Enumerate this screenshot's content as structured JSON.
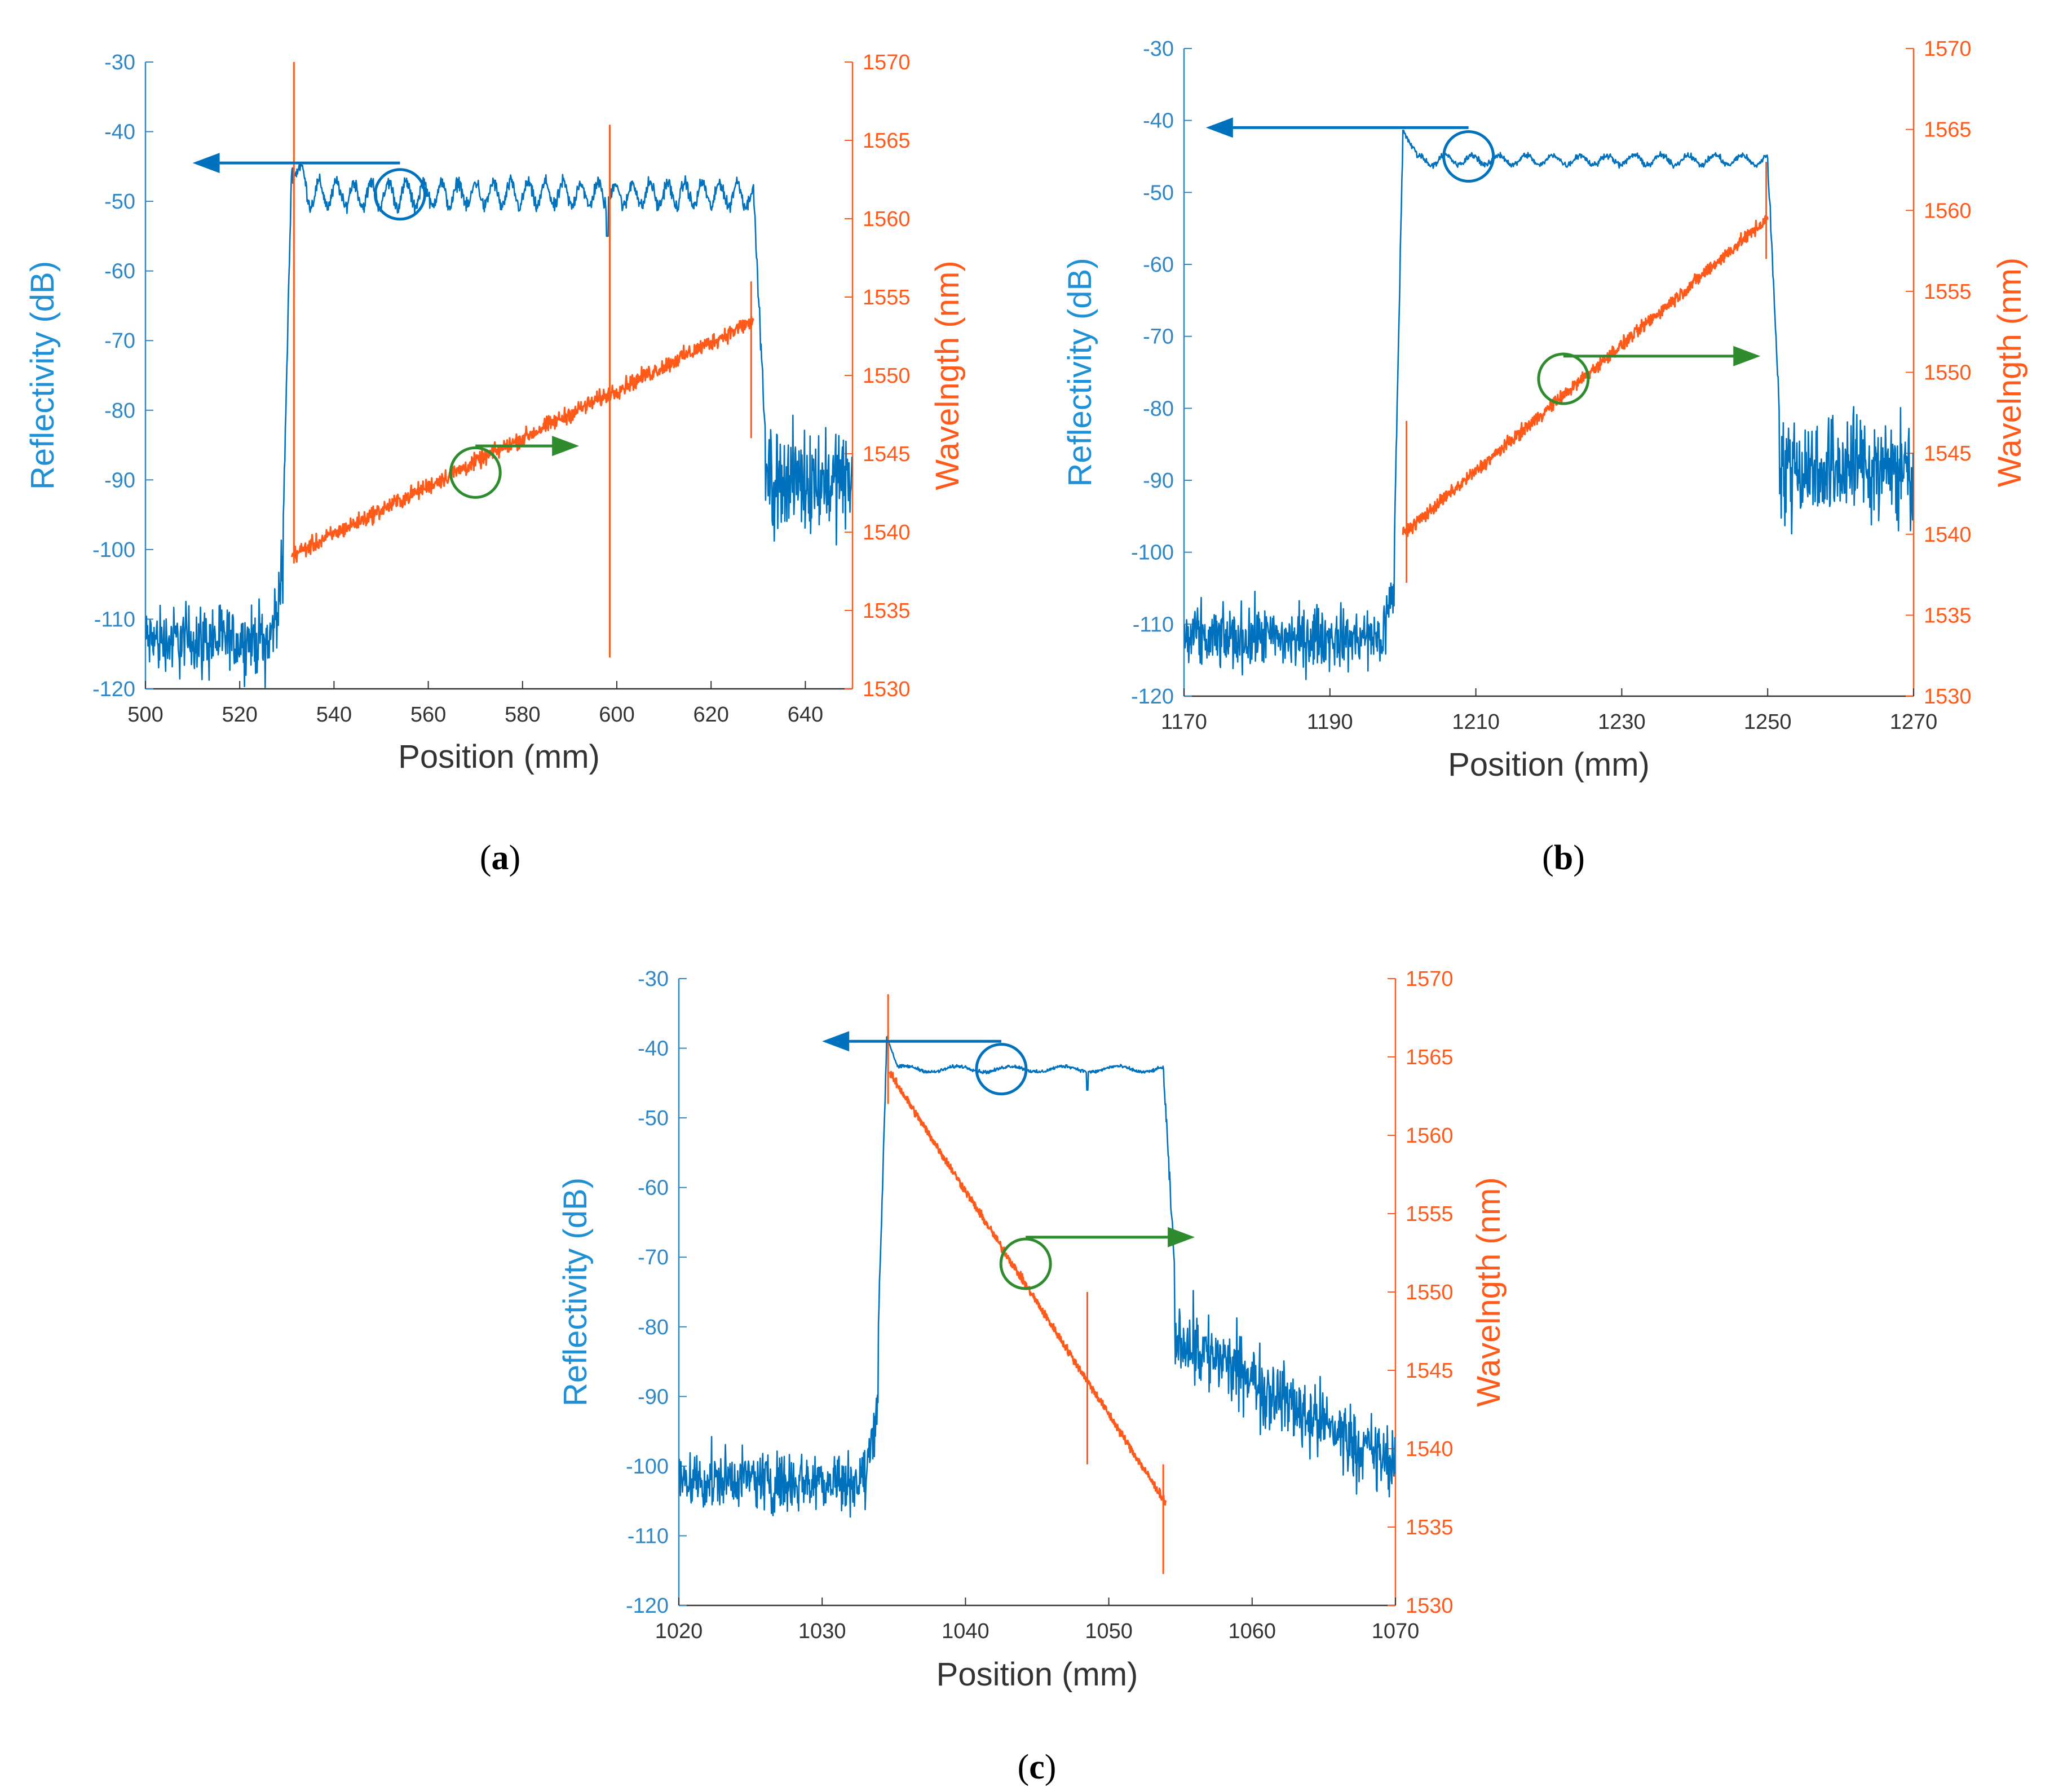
{
  "colors": {
    "reflectivity": "#0072bd",
    "reflectivity_text": "#2e87c6",
    "wavelength": "#ff5a1a",
    "indicator": "#2e8b2e",
    "axis_x": "#333333"
  },
  "chart_data": [
    {
      "panel": "a",
      "type": "line",
      "caption_open": "(",
      "caption_letter": "a",
      "caption_close": ")",
      "xlabel": "Position (mm)",
      "ylabel_left": "Reflectivity (dB)",
      "ylabel_right": "Wavelngth (nm)",
      "xlim": [
        500,
        650
      ],
      "ylim_left": [
        -120,
        -30
      ],
      "ylim_right": [
        1530,
        1570
      ],
      "xticks": [
        500,
        520,
        540,
        560,
        580,
        600,
        620,
        640
      ],
      "yticks_left": [
        -30,
        -40,
        -50,
        -60,
        -70,
        -80,
        -90,
        -100,
        -110,
        -120
      ],
      "yticks_right": [
        1570,
        1565,
        1560,
        1555,
        1550,
        1545,
        1540,
        1535,
        1530
      ],
      "grid": false,
      "series": [
        {
          "name": "Reflectivity",
          "axis": "left",
          "profile": {
            "noise_floor_db": -113,
            "noise_floor_amp_db": 9,
            "grating_start_mm": 531,
            "grating_end_mm": 629,
            "plateau_db": -49,
            "plateau_ripple_db": 2.5,
            "after_floor_db": -90,
            "after_floor_amp_db": 12,
            "edge_before_db": -97,
            "spike_mm": 598,
            "spike_db": -55
          }
        },
        {
          "name": "Wavelength",
          "axis": "right",
          "x": [
            531,
            629
          ],
          "y": [
            1538.5,
            1553.5
          ],
          "band_nm": 0.8,
          "spikes": [
            {
              "x": 531.5,
              "y_low": 1538,
              "y_high": 1570
            },
            {
              "x": 598.5,
              "y_low": 1532,
              "y_high": 1566
            },
            {
              "x": 628.5,
              "y_low": 1546,
              "y_high": 1556
            }
          ]
        }
      ],
      "annotations": [
        {
          "type": "circle-arrow",
          "series": "Reflectivity",
          "circle": [
            554,
            -49
          ],
          "arrow_to_x": 510,
          "arrow_y": -44.5,
          "direction": "left"
        },
        {
          "type": "circle-arrow",
          "series": "Wavelength",
          "circle": [
            570,
            1543.8
          ],
          "arrow_to_x": 592,
          "arrow_y": 1545.5,
          "direction": "right"
        }
      ]
    },
    {
      "panel": "b",
      "type": "line",
      "caption_open": "(",
      "caption_letter": "b",
      "caption_close": ")",
      "xlabel": "Position (mm)",
      "ylabel_left": "Reflectivity (dB)",
      "ylabel_right": "Wavelngth (nm)",
      "xlim": [
        1170,
        1270
      ],
      "ylim_left": [
        -120,
        -30
      ],
      "ylim_right": [
        1530,
        1570
      ],
      "xticks": [
        1170,
        1190,
        1210,
        1230,
        1250,
        1270
      ],
      "yticks_left": [
        -30,
        -40,
        -50,
        -60,
        -70,
        -80,
        -90,
        -100,
        -110,
        -120
      ],
      "yticks_right": [
        1570,
        1565,
        1560,
        1555,
        1550,
        1545,
        1540,
        1535,
        1530
      ],
      "grid": false,
      "series": [
        {
          "name": "Reflectivity",
          "axis": "left",
          "profile": {
            "noise_floor_db": -112,
            "noise_floor_amp_db": 8,
            "grating_start_mm": 1200,
            "grating_end_mm": 1250,
            "plateau_db": -45.5,
            "plateau_ripple_db": 1,
            "after_floor_db": -88,
            "after_floor_amp_db": 13,
            "edge_before_db": -100,
            "spike_mm": null,
            "spike_db": null
          }
        },
        {
          "name": "Wavelength",
          "axis": "right",
          "x": [
            1200,
            1250
          ],
          "y": [
            1540,
            1559.5
          ],
          "band_nm": 0.6,
          "spikes": [
            {
              "x": 1200.5,
              "y_low": 1537,
              "y_high": 1547
            },
            {
              "x": 1249.8,
              "y_low": 1557,
              "y_high": 1563
            }
          ]
        }
      ],
      "annotations": [
        {
          "type": "circle-arrow",
          "series": "Reflectivity",
          "circle": [
            1209,
            -45
          ],
          "arrow_to_x": 1173,
          "arrow_y": -41,
          "direction": "left"
        },
        {
          "type": "circle-arrow",
          "series": "Wavelength",
          "circle": [
            1222,
            1549.6
          ],
          "arrow_to_x": 1249,
          "arrow_y": 1551,
          "direction": "right"
        }
      ]
    },
    {
      "panel": "c",
      "type": "line",
      "caption_open": "(",
      "caption_letter": "c",
      "caption_close": ")",
      "xlabel": "Position (mm)",
      "ylabel_left": "Reflectivity (dB)",
      "ylabel_right": "Wavelngth (nm)",
      "xlim": [
        1020,
        1070
      ],
      "ylim_left": [
        -120,
        -30
      ],
      "ylim_right": [
        1530,
        1570
      ],
      "xticks": [
        1020,
        1030,
        1040,
        1050,
        1060,
        1070
      ],
      "yticks_left": [
        -30,
        -40,
        -50,
        -60,
        -70,
        -80,
        -90,
        -100,
        -110,
        -120
      ],
      "yticks_right": [
        1570,
        1565,
        1560,
        1555,
        1550,
        1545,
        1540,
        1535,
        1530
      ],
      "grid": false,
      "series": [
        {
          "name": "Reflectivity",
          "axis": "left",
          "profile": {
            "noise_floor_db": -102,
            "noise_floor_amp_db": 8,
            "grating_start_mm": 1034.5,
            "grating_end_mm": 1053.8,
            "plateau_db": -43,
            "plateau_ripple_db": 0.6,
            "after_floor_db": -80,
            "after_floor_decay_to_db": -100,
            "after_floor_amp_db": 9,
            "edge_before_db": -82,
            "spike_mm": 1048.5,
            "spike_db": -46
          }
        },
        {
          "name": "Wavelength",
          "axis": "right",
          "x": [
            1034.7,
            1054
          ],
          "y": [
            1564,
            1536.5
          ],
          "band_nm": 0.4,
          "spikes": [
            {
              "x": 1034.6,
              "y_low": 1562,
              "y_high": 1569
            },
            {
              "x": 1048.5,
              "y_low": 1539,
              "y_high": 1550
            },
            {
              "x": 1053.8,
              "y_low": 1532,
              "y_high": 1539
            }
          ]
        }
      ],
      "annotations": [
        {
          "type": "circle-arrow",
          "series": "Reflectivity",
          "circle": [
            1042.5,
            -43
          ],
          "arrow_to_x": 1030,
          "arrow_y": -39,
          "direction": "left"
        },
        {
          "type": "circle-arrow",
          "series": "Wavelength",
          "circle": [
            1044.2,
            1551.8
          ],
          "arrow_to_x": 1056,
          "arrow_y": 1553.5,
          "direction": "right"
        }
      ]
    }
  ]
}
